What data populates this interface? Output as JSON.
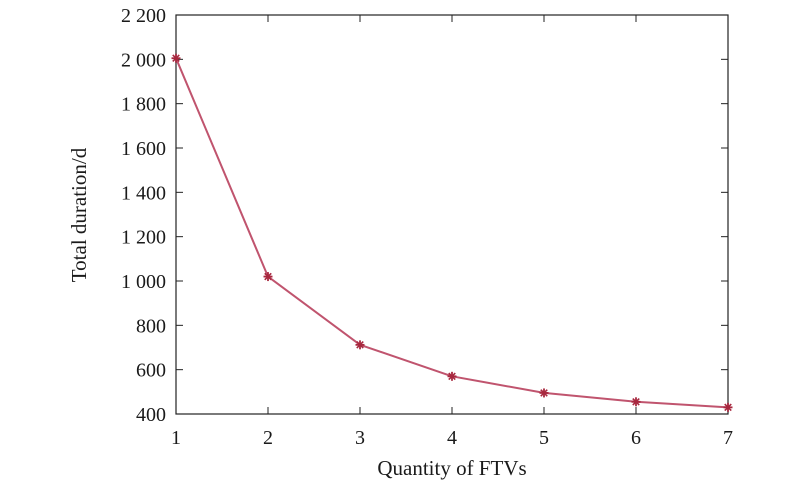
{
  "chart_data": {
    "type": "line",
    "title": "",
    "xlabel": "Quantity of FTVs",
    "ylabel": "Total duration/d",
    "x": [
      1,
      2,
      3,
      4,
      5,
      6,
      7
    ],
    "series": [
      {
        "values": [
          2005,
          1020,
          712,
          570,
          495,
          455,
          430
        ],
        "color": "#c0546e"
      }
    ],
    "xlim": [
      1,
      7
    ],
    "ylim": [
      400,
      2200
    ],
    "xticks": [
      1,
      2,
      3,
      4,
      5,
      6,
      7
    ],
    "yticks": [
      400,
      600,
      800,
      1000,
      1200,
      1400,
      1600,
      1800,
      2000,
      2200
    ],
    "xtick_labels": [
      "1",
      "2",
      "3",
      "4",
      "5",
      "6",
      "7"
    ],
    "ytick_labels": [
      "400",
      "600",
      "800",
      "1 000",
      "1 200",
      "1 400",
      "1 600",
      "1 800",
      "2 000",
      "2 200"
    ],
    "grid": false,
    "legend": "none",
    "marker": "star"
  }
}
